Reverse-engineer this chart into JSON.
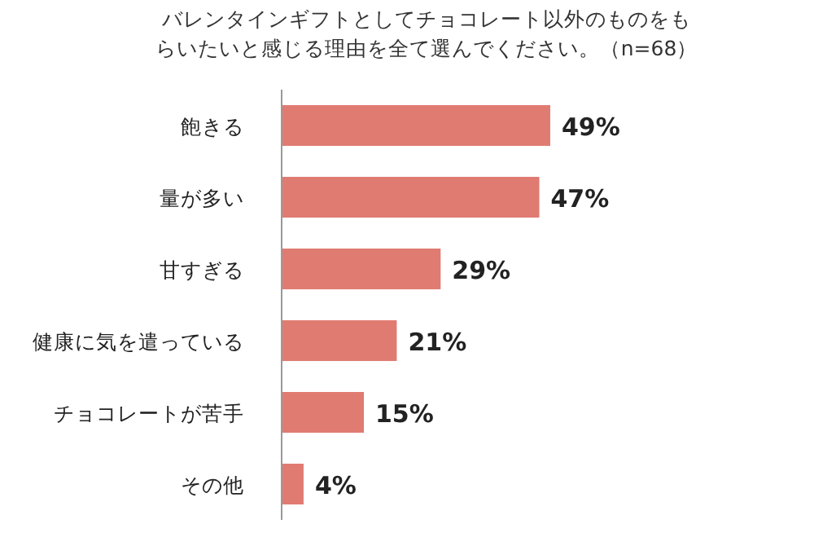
{
  "chart_data": {
    "type": "bar",
    "orientation": "horizontal",
    "title": "バレンタインギフトとしてチョコレート以外のものをもらいたいと感じる理由を全て選んでください。（n=68）",
    "categories": [
      "飽きる",
      "量が多い",
      "甘すぎる",
      "健康に気を遣っている",
      "チョコレートが苦手",
      "その他"
    ],
    "values": [
      49,
      47,
      29,
      21,
      15,
      4
    ],
    "value_labels": [
      "49%",
      "47%",
      "29%",
      "21%",
      "15%",
      "4%"
    ],
    "color": "#e07b72"
  }
}
